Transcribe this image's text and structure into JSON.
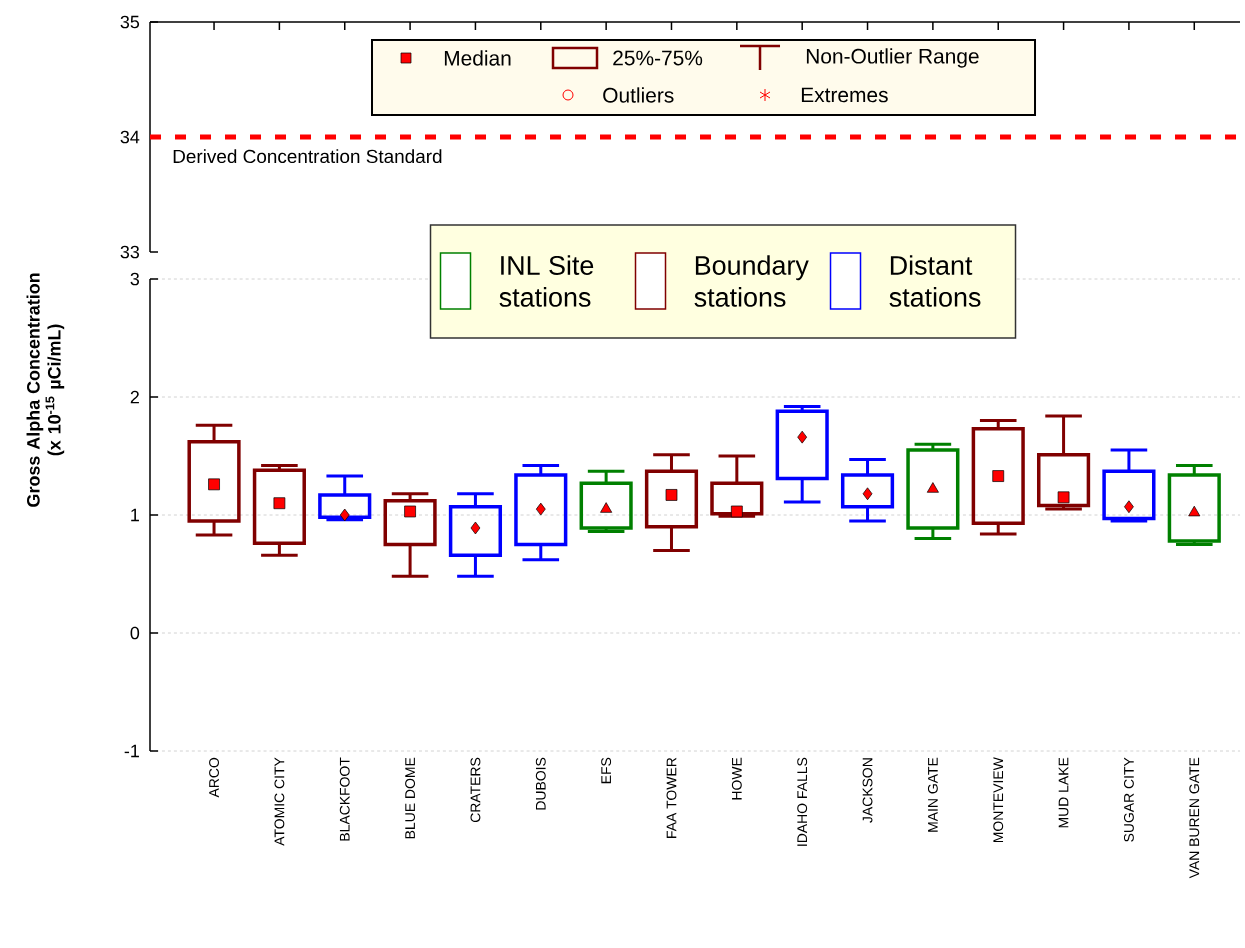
{
  "chart_data": [
    {
      "type": "box",
      "categories": [
        null,
        null,
        null,
        null,
        null,
        null,
        null,
        null,
        null,
        null,
        null,
        null,
        null,
        null,
        null,
        null
      ],
      "tick_labels": "y",
      "ylim": [
        33,
        35
      ],
      "yticks": [
        33,
        34,
        35
      ],
      "ref_lines": [
        {
          "axis": "y",
          "value": 34,
          "label": "Derived Concentration Standard",
          "color": "#ff0000",
          "line_style": "dashed"
        }
      ],
      "annotations": [
        "Median",
        "25%-75%",
        "Non-Outlier Range",
        "Outliers",
        "Extremes"
      ]
    },
    {
      "type": "box",
      "categories": [
        "ARCO",
        "ATOMIC CITY",
        "BLACKFOOT",
        "BLUE DOME",
        "CRATERS",
        "DUBOIS",
        "EFS",
        "FAA TOWER",
        "HOWE",
        "IDAHO FALLS",
        "JACKSON",
        "MAIN GATE",
        "MONTEVIEW",
        "MUD LAKE",
        "SUGAR CITY",
        "VAN BUREN GATE"
      ],
      "ylabel": "Gross Alpha Concentration (x 10$^{-15}$ µCi/mL)",
      "ylim": [
        -1,
        3
      ],
      "yticks": [
        -1,
        0,
        1,
        2,
        3
      ],
      "grid": "y",
      "legend": "top",
      "series": [
        {
          "name": "INL Site stations",
          "color": "#008000",
          "marker": "triangle",
          "boxes": [
            null,
            null,
            null,
            null,
            null,
            null,
            {
              "low": 0.86,
              "q1": 0.89,
              "median": 1.05,
              "q3": 1.27,
              "high": 1.37
            },
            null,
            null,
            null,
            null,
            {
              "low": 0.8,
              "q1": 0.89,
              "median": 1.22,
              "q3": 1.55,
              "high": 1.6
            },
            null,
            null,
            null,
            {
              "low": 0.75,
              "q1": 0.78,
              "median": 1.02,
              "q3": 1.34,
              "high": 1.42
            }
          ]
        },
        {
          "name": "Boundary stations",
          "color": "#800000",
          "marker": "square",
          "boxes": [
            {
              "low": 0.83,
              "q1": 0.95,
              "median": 1.26,
              "q3": 1.62,
              "high": 1.76
            },
            {
              "low": 0.66,
              "q1": 0.76,
              "median": 1.1,
              "q3": 1.38,
              "high": 1.42
            },
            null,
            {
              "low": 0.48,
              "q1": 0.75,
              "median": 1.03,
              "q3": 1.12,
              "high": 1.18
            },
            null,
            null,
            null,
            {
              "low": 0.7,
              "q1": 0.9,
              "median": 1.17,
              "q3": 1.37,
              "high": 1.51
            },
            {
              "low": 0.99,
              "q1": 1.01,
              "median": 1.03,
              "q3": 1.27,
              "high": 1.5
            },
            null,
            null,
            null,
            {
              "low": 0.84,
              "q1": 0.93,
              "median": 1.33,
              "q3": 1.73,
              "high": 1.8
            },
            {
              "low": 1.05,
              "q1": 1.08,
              "median": 1.15,
              "q3": 1.51,
              "high": 1.84
            },
            null,
            null
          ]
        },
        {
          "name": "Distant stations",
          "color": "#0000ff",
          "marker": "diamond",
          "boxes": [
            null,
            null,
            {
              "low": 0.96,
              "q1": 0.98,
              "median": 1.0,
              "q3": 1.17,
              "high": 1.33
            },
            null,
            {
              "low": 0.48,
              "q1": 0.66,
              "median": 0.89,
              "q3": 1.07,
              "high": 1.18
            },
            {
              "low": 0.62,
              "q1": 0.75,
              "median": 1.05,
              "q3": 1.34,
              "high": 1.42
            },
            null,
            null,
            null,
            {
              "low": 1.11,
              "q1": 1.31,
              "median": 1.66,
              "q3": 1.88,
              "high": 1.92
            },
            {
              "low": 0.95,
              "q1": 1.07,
              "median": 1.18,
              "q3": 1.34,
              "high": 1.47
            },
            null,
            null,
            null,
            {
              "low": 0.95,
              "q1": 0.97,
              "median": 1.07,
              "q3": 1.37,
              "high": 1.55
            },
            null
          ]
        }
      ]
    }
  ]
}
